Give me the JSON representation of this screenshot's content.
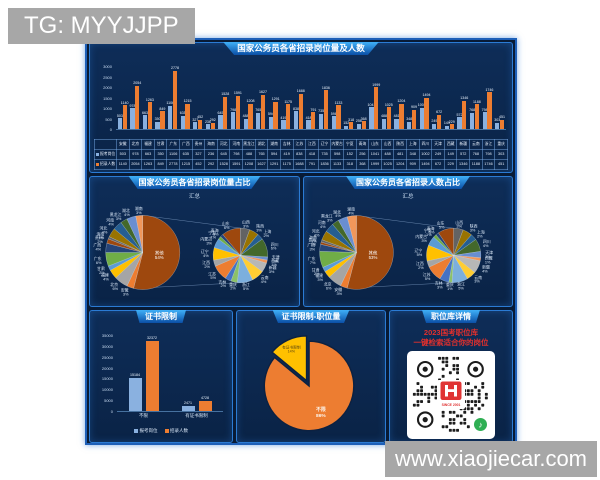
{
  "watermarks": {
    "top_left": "TG: MYYJJPP",
    "bottom_right": "www.xiaojiecar.com"
  },
  "panels": {
    "top": {
      "title": "国家公务员各省招录岗位量及人数"
    },
    "mid_left": {
      "title": "国家公务员各省招录岗位量占比",
      "subtitle": "汇总"
    },
    "mid_right": {
      "title": "国家公务员各省招录人数占比",
      "subtitle": "汇总"
    },
    "bottom_left": {
      "title": "证书限制"
    },
    "bottom_mid": {
      "title": "证书限制-职位量"
    },
    "bottom_right": {
      "title": "职位库详情",
      "promo_line1": "2023国考职位库",
      "promo_line2": "一键检索适合你的岗位",
      "qr_badge": "SINCE 2001"
    }
  },
  "colors": {
    "board_bg": "#081b36",
    "panel_border": "#2b7bd4",
    "banner_top": "#3fb0f8",
    "banner_bottom": "#0b4fa6",
    "series_blue": "#8ab1e0",
    "series_orange": "#ed7d31",
    "other_slice": "#9e480e",
    "cert_yellow": "#ffc000",
    "watermark_gray": "#a7a7a7",
    "promo_red": "#e0302d",
    "qr_green": "#2faf54",
    "qr_logo_red": "#e03434"
  },
  "palette": [
    "#4472c4",
    "#ed7d31",
    "#a5a5a5",
    "#ffc000",
    "#5b9bd5",
    "#70ad47",
    "#264478",
    "#9e480e",
    "#636363",
    "#997300",
    "#255e91",
    "#43682b",
    "#698ed0",
    "#f1975a",
    "#b7b7b7",
    "#ffcd33",
    "#7cafdd",
    "#8cc168"
  ],
  "chart_data": [
    {
      "id": "province_recruit_bar",
      "type": "bar",
      "title": "国家公务员各省招录岗位量及人数",
      "categories": [
        "安徽",
        "北京",
        "福建",
        "甘肃",
        "广东",
        "广西",
        "贵州",
        "海南",
        "河北",
        "河南",
        "黑龙江",
        "湖北",
        "湖南",
        "吉林",
        "江苏",
        "江西",
        "辽宁",
        "内蒙古",
        "宁夏",
        "青海",
        "山东",
        "山西",
        "陕西",
        "上海",
        "四川",
        "天津",
        "西藏",
        "新疆",
        "云南",
        "浙江",
        "重庆"
      ],
      "series": [
        {
          "name": "报考岗位",
          "color": "#8ab1e0",
          "values": [
            503,
            978,
            663,
            350,
            1106,
            635,
            327,
            236,
            645,
            798,
            488,
            765,
            594,
            419,
            838,
            418,
            735,
            598,
            152,
            256,
            1041,
            488,
            481,
            348,
            1002,
            249,
            149,
            572,
            768,
            798,
            303
          ]
        },
        {
          "name": "招录人数",
          "color": "#ed7d31",
          "values": [
            1140,
            2054,
            1263,
            849,
            2778,
            1215,
            452,
            292,
            1528,
            1591,
            1208,
            1627,
            1291,
            1175,
            1688,
            791,
            1836,
            1133,
            318,
            368,
            1999,
            1025,
            1204,
            909,
            1494,
            672,
            229,
            1346,
            1188,
            1746,
            451
          ]
        }
      ],
      "ylim": [
        0,
        3000
      ],
      "ytick_step": 500,
      "grid": false,
      "show_table": true
    },
    {
      "id": "position_share_pie",
      "type": "pie",
      "variant": "pie-of-pie",
      "title": "国家公务员各省招录岗位量占比",
      "subtitle": "汇总",
      "start_deg": -90,
      "rotate_detail_to_top": "山西",
      "main": [
        {
          "name": "其他",
          "pct": 54,
          "color": "#9e480e"
        },
        {
          "name": "安徽",
          "pct": 3
        },
        {
          "name": "北京",
          "pct": 6
        },
        {
          "name": "福建",
          "pct": 4
        },
        {
          "name": "甘肃",
          "pct": 2
        },
        {
          "name": "广东",
          "pct": 6
        },
        {
          "name": "广西",
          "pct": 4
        },
        {
          "name": "贵州",
          "pct": 2
        },
        {
          "name": "海南",
          "pct": 1
        },
        {
          "name": "河北",
          "pct": 4
        },
        {
          "name": "河南",
          "pct": 4
        },
        {
          "name": "黑龙江",
          "pct": 3
        },
        {
          "name": "湖北",
          "pct": 4
        },
        {
          "name": "湖南",
          "pct": 3
        }
      ],
      "detail": [
        {
          "name": "吉林",
          "pct": 2
        },
        {
          "name": "江苏",
          "pct": 5
        },
        {
          "name": "江西",
          "pct": 2
        },
        {
          "name": "辽宁",
          "pct": 4
        },
        {
          "name": "内蒙古",
          "pct": 3
        },
        {
          "name": "宁夏",
          "pct": 1
        },
        {
          "name": "青海",
          "pct": 1
        },
        {
          "name": "山东",
          "pct": 6
        },
        {
          "name": "山西",
          "pct": 3
        },
        {
          "name": "陕西",
          "pct": 3
        },
        {
          "name": "上海",
          "pct": 2
        },
        {
          "name": "四川",
          "pct": 6
        },
        {
          "name": "天津",
          "pct": 1
        },
        {
          "name": "西藏",
          "pct": 1
        },
        {
          "name": "新疆",
          "pct": 3
        },
        {
          "name": "云南",
          "pct": 4
        },
        {
          "name": "浙江",
          "pct": 5
        },
        {
          "name": "重庆",
          "pct": 2
        }
      ]
    },
    {
      "id": "headcount_share_pie",
      "type": "pie",
      "variant": "pie-of-pie",
      "title": "国家公务员各省招录人数占比",
      "subtitle": "汇总",
      "start_deg": -90,
      "rotate_detail_to_top": "山西",
      "main": [
        {
          "name": "其他",
          "pct": 53,
          "color": "#9e480e"
        },
        {
          "name": "安徽",
          "pct": 3
        },
        {
          "name": "北京",
          "pct": 6
        },
        {
          "name": "福建",
          "pct": 3
        },
        {
          "name": "甘肃",
          "pct": 2
        },
        {
          "name": "广东",
          "pct": 7
        },
        {
          "name": "广西",
          "pct": 3
        },
        {
          "name": "贵州",
          "pct": 1
        },
        {
          "name": "海南",
          "pct": 1
        },
        {
          "name": "河北",
          "pct": 4
        },
        {
          "name": "河南",
          "pct": 4
        },
        {
          "name": "黑龙江",
          "pct": 3
        },
        {
          "name": "湖北",
          "pct": 4
        },
        {
          "name": "湖南",
          "pct": 4
        }
      ],
      "detail": [
        {
          "name": "吉林",
          "pct": 3
        },
        {
          "name": "江苏",
          "pct": 5
        },
        {
          "name": "江西",
          "pct": 2
        },
        {
          "name": "辽宁",
          "pct": 5
        },
        {
          "name": "内蒙古",
          "pct": 3
        },
        {
          "name": "宁夏",
          "pct": 1
        },
        {
          "name": "青海",
          "pct": 1
        },
        {
          "name": "山东",
          "pct": 5
        },
        {
          "name": "山西",
          "pct": 3
        },
        {
          "name": "陕西",
          "pct": 3
        },
        {
          "name": "上海",
          "pct": 2
        },
        {
          "name": "四川",
          "pct": 4
        },
        {
          "name": "天津",
          "pct": 2
        },
        {
          "name": "西藏",
          "pct": 1
        },
        {
          "name": "新疆",
          "pct": 4
        },
        {
          "name": "云南",
          "pct": 3
        },
        {
          "name": "浙江",
          "pct": 5
        },
        {
          "name": "重庆",
          "pct": 1
        }
      ]
    },
    {
      "id": "cert_bar",
      "type": "bar",
      "title": "证书限制",
      "categories": [
        "不限",
        "有证书限制"
      ],
      "series": [
        {
          "name": "报考岗位",
          "color": "#8ab1e0",
          "values": [
            15184,
            2471
          ]
        },
        {
          "name": "招录人数",
          "color": "#ed7d31",
          "values": [
            32372,
            4728
          ]
        }
      ],
      "ylim": [
        0,
        35000
      ],
      "ytick_step": 5000,
      "legend_position": "bottom"
    },
    {
      "id": "cert_pie",
      "type": "pie",
      "title": "证书限制-职位量",
      "start_deg": -90,
      "slices": [
        {
          "name": "不限",
          "pct": 86,
          "color": "#ed7d31"
        },
        {
          "name": "有证书限制",
          "pct": 14,
          "color": "#ffc000",
          "exploded": true
        }
      ]
    }
  ]
}
